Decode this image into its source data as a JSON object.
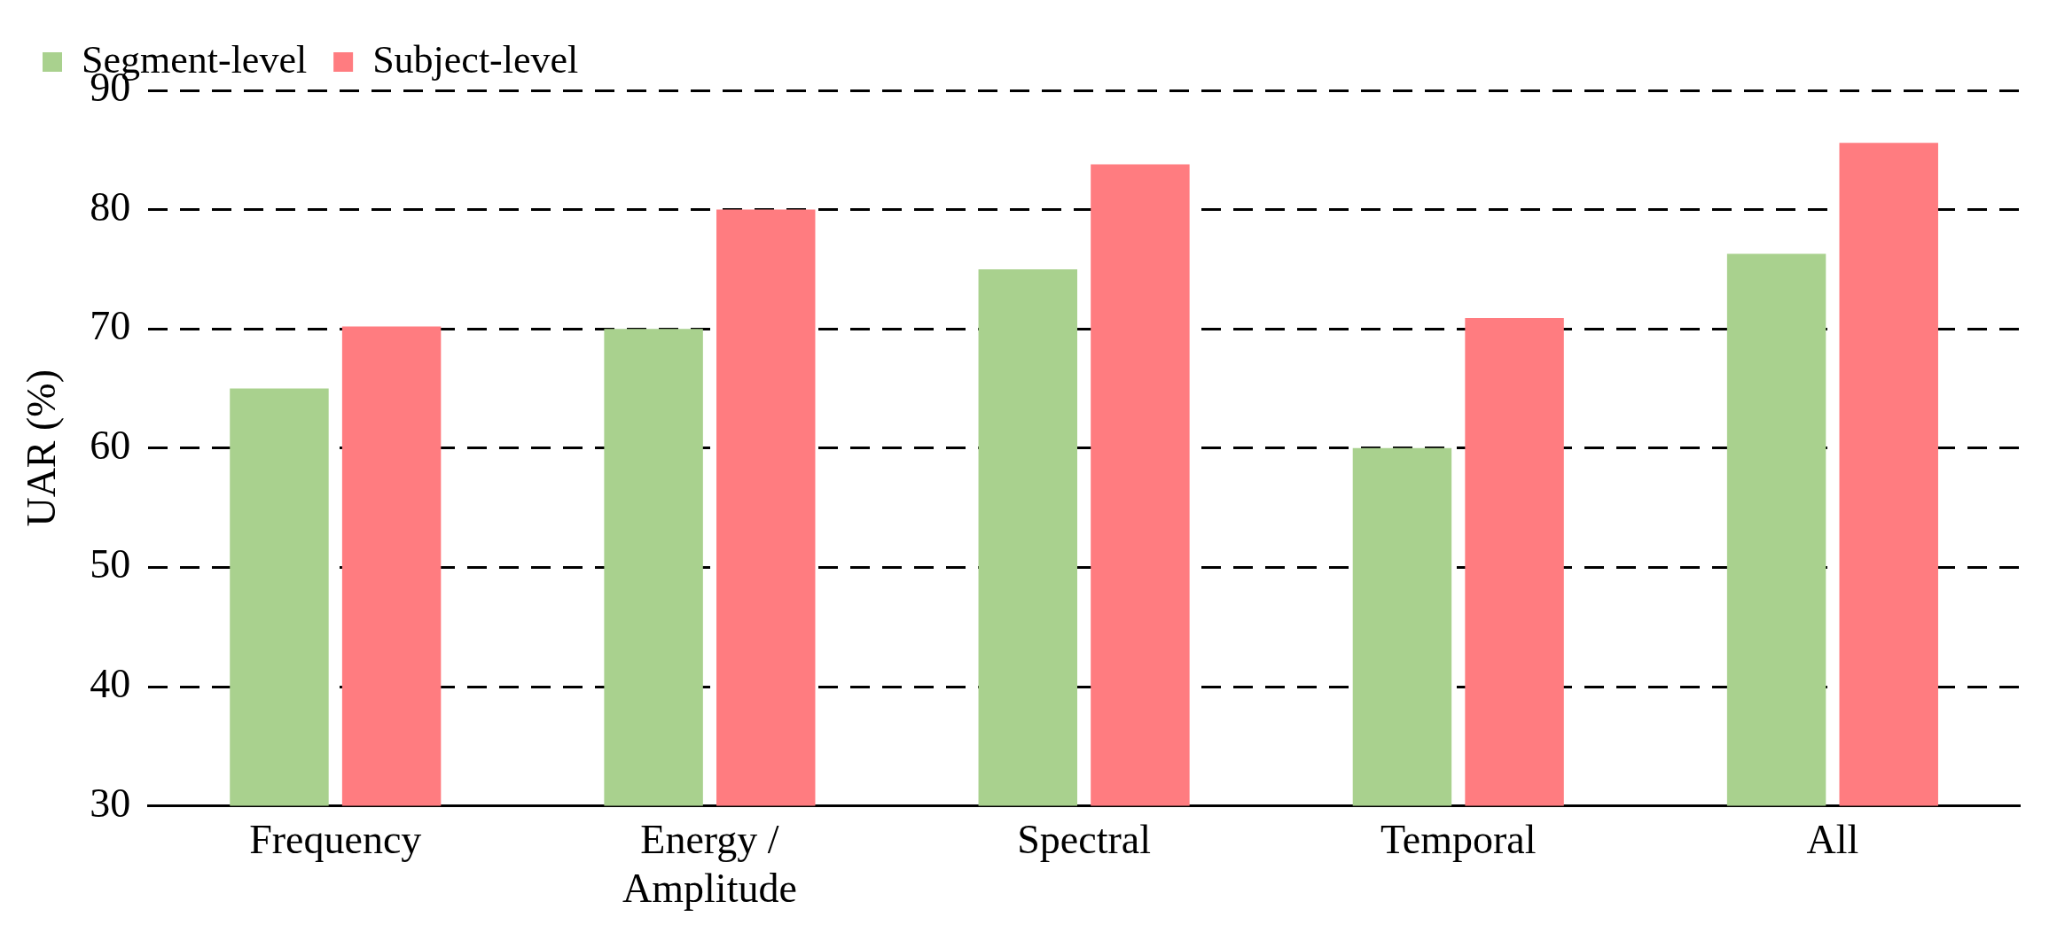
{
  "chart_data": {
    "type": "bar",
    "ylabel": "UAR (%)",
    "categories": [
      "Frequency",
      "Energy / Amplitude",
      "Spectral",
      "Temporal",
      "All"
    ],
    "series": [
      {
        "name": "Segment-level",
        "color": "#a9d18e",
        "values": [
          65,
          70,
          75,
          60,
          76.3
        ]
      },
      {
        "name": "Subject-level",
        "color": "#ff7c80",
        "values": [
          70.2,
          80,
          83.8,
          70.9,
          85.6
        ]
      }
    ],
    "ylim": [
      30,
      90
    ],
    "yticks": [
      30,
      40,
      50,
      60,
      70,
      80,
      90
    ],
    "grid": "y",
    "legend": "top left"
  }
}
